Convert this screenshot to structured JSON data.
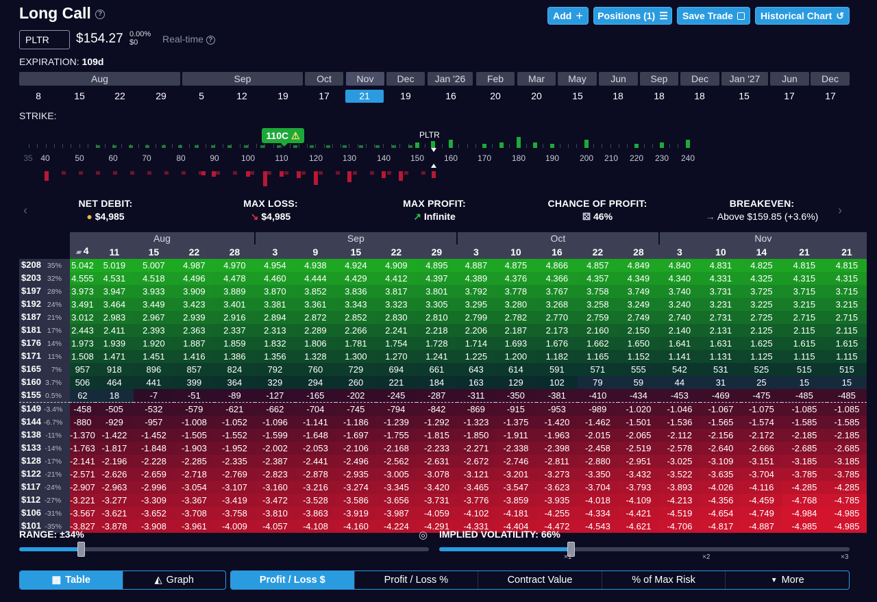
{
  "header": {
    "title": "Long Call",
    "add_label": "Add",
    "positions_label": "Positions (1)",
    "save_label": "Save Trade",
    "historical_label": "Historical Chart"
  },
  "quote": {
    "ticker": "PLTR",
    "price": "$154.27",
    "change_pct": "0.00%",
    "change_usd": "$0",
    "realtime_label": "Real-time"
  },
  "expiration": {
    "label": "EXPIRATION:",
    "value": "109d",
    "months": [
      "Aug",
      "Sep",
      "Oct",
      "Nov",
      "Dec",
      "Jan '26",
      "Feb",
      "Mar",
      "May",
      "Jun",
      "Sep",
      "Dec",
      "Jan '27",
      "Jun",
      "Dec"
    ],
    "days": [
      "8",
      "15",
      "22",
      "29",
      "5",
      "12",
      "19",
      "17",
      "21",
      "19",
      "16",
      "20",
      "20",
      "15",
      "18",
      "18",
      "18",
      "15",
      "17",
      "17"
    ],
    "selected_day_index": 8
  },
  "strike": {
    "label": "STRIKE:",
    "badge": "110C",
    "spot_label": "PLTR",
    "strikes": [
      "35",
      "40",
      "50",
      "60",
      "70",
      "80",
      "90",
      "100",
      "110",
      "120",
      "130",
      "140",
      "150",
      "160",
      "170",
      "180",
      "190",
      "200",
      "210",
      "220",
      "230",
      "240"
    ]
  },
  "stats": {
    "net_debit_label": "NET DEBIT:",
    "net_debit": "$4,985",
    "max_loss_label": "MAX LOSS:",
    "max_loss": "$4,985",
    "max_profit_label": "MAX PROFIT:",
    "max_profit": "Infinite",
    "chance_label": "CHANCE OF PROFIT:",
    "chance": "46%",
    "breakeven_label": "BREAKEVEN:",
    "breakeven": "Above $159.85 (+3.6%)"
  },
  "table": {
    "months": [
      {
        "name": "Aug",
        "span": 5
      },
      {
        "name": "Sep",
        "span": 5
      },
      {
        "name": "Oct",
        "span": 5
      },
      {
        "name": "Nov",
        "span": 5
      }
    ],
    "days": [
      "4",
      "11",
      "15",
      "22",
      "28",
      "3",
      "9",
      "15",
      "22",
      "29",
      "3",
      "10",
      "16",
      "22",
      "28",
      "3",
      "10",
      "14",
      "21",
      "21"
    ],
    "rows": [
      {
        "price": "$208",
        "pct": "35%",
        "values": [
          "5.042",
          "5.019",
          "5.007",
          "4.987",
          "4.970",
          "4.954",
          "4.938",
          "4.924",
          "4.909",
          "4.895",
          "4.887",
          "4.875",
          "4.866",
          "4.857",
          "4.849",
          "4.840",
          "4.831",
          "4.825",
          "4.815",
          "4.815"
        ]
      },
      {
        "price": "$203",
        "pct": "32%",
        "values": [
          "4.555",
          "4.531",
          "4.518",
          "4.496",
          "4.478",
          "4.460",
          "4.444",
          "4.429",
          "4.412",
          "4.397",
          "4.389",
          "4.376",
          "4.366",
          "4.357",
          "4.349",
          "4.340",
          "4.331",
          "4.325",
          "4.315",
          "4.315"
        ]
      },
      {
        "price": "$197",
        "pct": "28%",
        "values": [
          "3.973",
          "3.947",
          "3.933",
          "3.909",
          "3.889",
          "3.870",
          "3.852",
          "3.836",
          "3.817",
          "3.801",
          "3.792",
          "3.778",
          "3.767",
          "3.758",
          "3.749",
          "3.740",
          "3.731",
          "3.725",
          "3.715",
          "3.715"
        ]
      },
      {
        "price": "$192",
        "pct": "24%",
        "values": [
          "3.491",
          "3.464",
          "3.449",
          "3.423",
          "3.401",
          "3.381",
          "3.361",
          "3.343",
          "3.323",
          "3.305",
          "3.295",
          "3.280",
          "3.268",
          "3.258",
          "3.249",
          "3.240",
          "3.231",
          "3.225",
          "3.215",
          "3.215"
        ]
      },
      {
        "price": "$187",
        "pct": "21%",
        "values": [
          "3.012",
          "2.983",
          "2.967",
          "2.939",
          "2.916",
          "2.894",
          "2.872",
          "2.852",
          "2.830",
          "2.810",
          "2.799",
          "2.782",
          "2.770",
          "2.759",
          "2.749",
          "2.740",
          "2.731",
          "2.725",
          "2.715",
          "2.715"
        ]
      },
      {
        "price": "$181",
        "pct": "17%",
        "values": [
          "2.443",
          "2.411",
          "2.393",
          "2.363",
          "2.337",
          "2.313",
          "2.289",
          "2.266",
          "2.241",
          "2.218",
          "2.206",
          "2.187",
          "2.173",
          "2.160",
          "2.150",
          "2.140",
          "2.131",
          "2.125",
          "2.115",
          "2.115"
        ]
      },
      {
        "price": "$176",
        "pct": "14%",
        "values": [
          "1.973",
          "1.939",
          "1.920",
          "1.887",
          "1.859",
          "1.832",
          "1.806",
          "1.781",
          "1.754",
          "1.728",
          "1.714",
          "1.693",
          "1.676",
          "1.662",
          "1.650",
          "1.641",
          "1.631",
          "1.625",
          "1.615",
          "1.615"
        ]
      },
      {
        "price": "$171",
        "pct": "11%",
        "values": [
          "1.508",
          "1.471",
          "1.451",
          "1.416",
          "1.386",
          "1.356",
          "1.328",
          "1.300",
          "1.270",
          "1.241",
          "1.225",
          "1.200",
          "1.182",
          "1.165",
          "1.152",
          "1.141",
          "1.131",
          "1.125",
          "1.115",
          "1.115"
        ]
      },
      {
        "price": "$165",
        "pct": "7%",
        "values": [
          "957",
          "918",
          "896",
          "857",
          "824",
          "792",
          "760",
          "729",
          "694",
          "661",
          "643",
          "614",
          "591",
          "571",
          "555",
          "542",
          "531",
          "525",
          "515",
          "515"
        ]
      },
      {
        "price": "$160",
        "pct": "3.7%",
        "values": [
          "506",
          "464",
          "441",
          "399",
          "364",
          "329",
          "294",
          "260",
          "221",
          "184",
          "163",
          "129",
          "102",
          "79",
          "59",
          "44",
          "31",
          "25",
          "15",
          "15"
        ]
      },
      {
        "price": "$155",
        "pct": "0.5%",
        "values": [
          "62",
          "18",
          "-7",
          "-51",
          "-89",
          "-127",
          "-165",
          "-202",
          "-245",
          "-287",
          "-311",
          "-350",
          "-381",
          "-410",
          "-434",
          "-453",
          "-469",
          "-475",
          "-485",
          "-485"
        ]
      },
      {
        "price": "$149",
        "pct": "-3.4%",
        "values": [
          "-458",
          "-505",
          "-532",
          "-579",
          "-621",
          "-662",
          "-704",
          "-745",
          "-794",
          "-842",
          "-869",
          "-915",
          "-953",
          "-989",
          "-1.020",
          "-1.046",
          "-1.067",
          "-1.075",
          "-1.085",
          "-1.085"
        ]
      },
      {
        "price": "$144",
        "pct": "-6.7%",
        "values": [
          "-880",
          "-929",
          "-957",
          "-1.008",
          "-1.052",
          "-1.096",
          "-1.141",
          "-1.186",
          "-1.239",
          "-1.292",
          "-1.323",
          "-1.375",
          "-1.420",
          "-1.462",
          "-1.501",
          "-1.536",
          "-1.565",
          "-1.574",
          "-1.585",
          "-1.585"
        ]
      },
      {
        "price": "$138",
        "pct": "-11%",
        "values": [
          "-1.370",
          "-1.422",
          "-1.452",
          "-1.505",
          "-1.552",
          "-1.599",
          "-1.648",
          "-1.697",
          "-1.755",
          "-1.815",
          "-1.850",
          "-1.911",
          "-1.963",
          "-2.015",
          "-2.065",
          "-2.112",
          "-2.156",
          "-2.172",
          "-2.185",
          "-2.185"
        ]
      },
      {
        "price": "$133",
        "pct": "-14%",
        "values": [
          "-1.763",
          "-1.817",
          "-1.848",
          "-1.903",
          "-1.952",
          "-2.002",
          "-2.053",
          "-2.106",
          "-2.168",
          "-2.233",
          "-2.271",
          "-2.338",
          "-2.398",
          "-2.458",
          "-2.519",
          "-2.578",
          "-2.640",
          "-2.666",
          "-2.685",
          "-2.685"
        ]
      },
      {
        "price": "$128",
        "pct": "-17%",
        "values": [
          "-2.141",
          "-2.196",
          "-2.228",
          "-2.285",
          "-2.335",
          "-2.387",
          "-2.441",
          "-2.496",
          "-2.562",
          "-2.631",
          "-2.672",
          "-2.746",
          "-2.811",
          "-2.880",
          "-2.951",
          "-3.025",
          "-3.109",
          "-3.151",
          "-3.185",
          "-3.185"
        ]
      },
      {
        "price": "$122",
        "pct": "-21%",
        "values": [
          "-2.571",
          "-2.626",
          "-2.659",
          "-2.718",
          "-2.769",
          "-2.823",
          "-2.878",
          "-2.935",
          "-3.005",
          "-3.078",
          "-3.121",
          "-3.201",
          "-3.273",
          "-3.350",
          "-3.432",
          "-3.522",
          "-3.635",
          "-3.704",
          "-3.785",
          "-3.785"
        ]
      },
      {
        "price": "$117",
        "pct": "-24%",
        "values": [
          "-2.907",
          "-2.963",
          "-2.996",
          "-3.054",
          "-3.107",
          "-3.160",
          "-3.216",
          "-3.274",
          "-3.345",
          "-3.420",
          "-3.465",
          "-3.547",
          "-3.623",
          "-3.704",
          "-3.793",
          "-3.893",
          "-4.026",
          "-4.116",
          "-4.285",
          "-4.285"
        ]
      },
      {
        "price": "$112",
        "pct": "-27%",
        "values": [
          "-3.221",
          "-3.277",
          "-3.309",
          "-3.367",
          "-3.419",
          "-3.472",
          "-3.528",
          "-3.586",
          "-3.656",
          "-3.731",
          "-3.776",
          "-3.859",
          "-3.935",
          "-4.018",
          "-4.109",
          "-4.213",
          "-4.356",
          "-4.459",
          "-4.768",
          "-4.785"
        ]
      },
      {
        "price": "$106",
        "pct": "-31%",
        "values": [
          "-3.567",
          "-3.621",
          "-3.652",
          "-3.708",
          "-3.758",
          "-3.810",
          "-3.863",
          "-3.919",
          "-3.987",
          "-4.059",
          "-4.102",
          "-4.181",
          "-4.255",
          "-4.334",
          "-4.421",
          "-4.519",
          "-4.654",
          "-4.749",
          "-4.984",
          "-4.985"
        ]
      },
      {
        "price": "$101",
        "pct": "-35%",
        "values": [
          "-3.827",
          "-3.878",
          "-3.908",
          "-3.961",
          "-4.009",
          "-4.057",
          "-4.108",
          "-4.160",
          "-4.224",
          "-4.291",
          "-4.331",
          "-4.404",
          "-4.472",
          "-4.543",
          "-4.621",
          "-4.706",
          "-4.817",
          "-4.887",
          "-4.985",
          "-4.985"
        ]
      }
    ]
  },
  "range": {
    "label": "RANGE:",
    "value": "±34%",
    "fill_fraction": 0.15
  },
  "iv": {
    "label": "IMPLIED VOLATILITY:",
    "value": "66%",
    "fill_fraction": 0.32,
    "marks": [
      "×1",
      "×2",
      "×3"
    ]
  },
  "bottom": {
    "table_label": "Table",
    "graph_label": "Graph",
    "pl_usd_label": "Profit / Loss $",
    "pl_pct_label": "Profit / Loss %",
    "contract_value_label": "Contract Value",
    "max_risk_label": "% of Max Risk",
    "more_label": "More"
  },
  "colors": {
    "accent": "#2b9be0",
    "profit": "#1eaa3a",
    "loss": "#b81834",
    "background": "#0b0c22"
  }
}
